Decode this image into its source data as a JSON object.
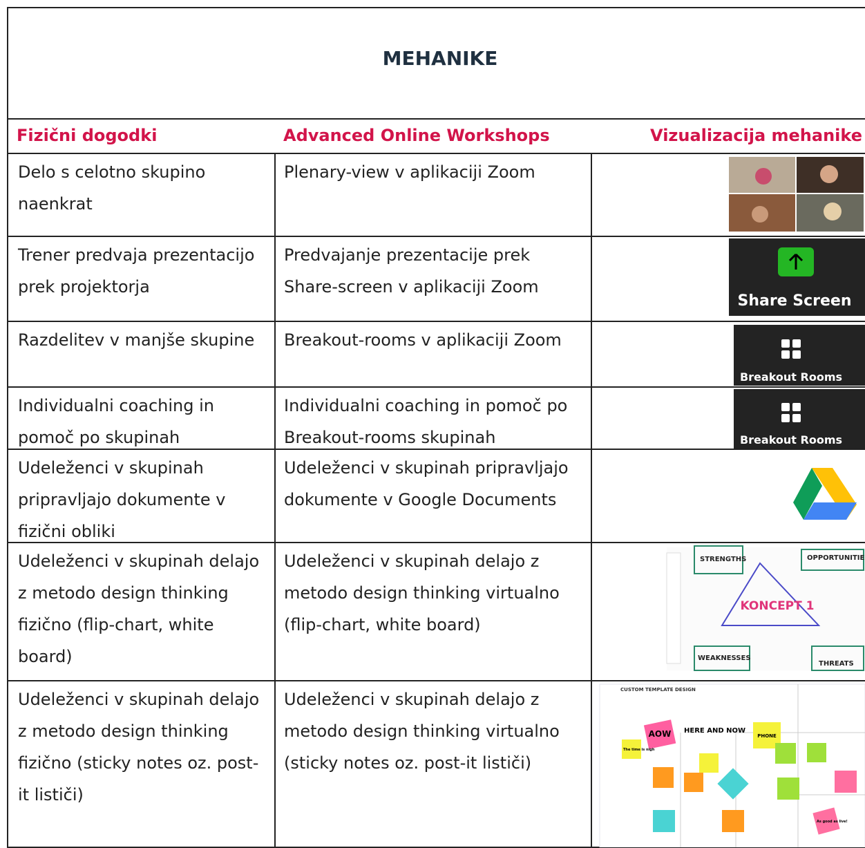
{
  "title": "MEHANIKE",
  "table": {
    "header": [
      "Fizični dogodki",
      "Advanced Online Workshops",
      "Vizualizacija mehanike"
    ],
    "rows": [
      [
        "Delo s celotno skupino naenkrat",
        "Plenary-view v aplikaciji Zoom"
      ],
      [
        "Trener predvaja prezentacijo prek projektorja",
        "Predvajanje prezentacije prek Share-screen v aplikaciji Zoom"
      ],
      [
        "Razdelitev v manjše skupine",
        "Breakout-rooms v aplikaciji Zoom"
      ],
      [
        "Individualni coaching in pomoč po skupinah",
        "Individualni coaching in pomoč po Breakout-rooms skupinah"
      ],
      [
        "Udeleženci v skupinah pripravljajo dokumente v fizični obliki",
        "Udeleženci v skupinah pripravljajo dokumente v Google Documents"
      ],
      [
        "Udeleženci v skupinah delajo z metodo design thinking fizično (flip-chart, white board)",
        "Udeleženci v skupinah delajo z metodo design thinking virtualno (flip-chart, white board)"
      ],
      [
        "Udeleženci v skupinah delajo z metodo design thinking fizično (sticky notes oz. post-it lističi)",
        "Udeleženci v skupinah delajo z metodo design thinking virtualno (sticky notes oz. post-it lističi)"
      ]
    ]
  },
  "images": {
    "share_screen": "Share Screen",
    "breakout_rooms": [
      "Breakout Rooms",
      "Breakout Rooms"
    ],
    "whiteboard": [
      "STRENGTHS",
      "OPPORTUNITIES",
      "KONCEPT 1",
      "WEAKNESSES",
      "THREATS"
    ],
    "sticky": [
      "CUSTOM TEMPLATE DESIGN",
      "AOW",
      "HERE AND NOW",
      "PHONE",
      "The time is nigh",
      "As good as live!"
    ]
  }
}
